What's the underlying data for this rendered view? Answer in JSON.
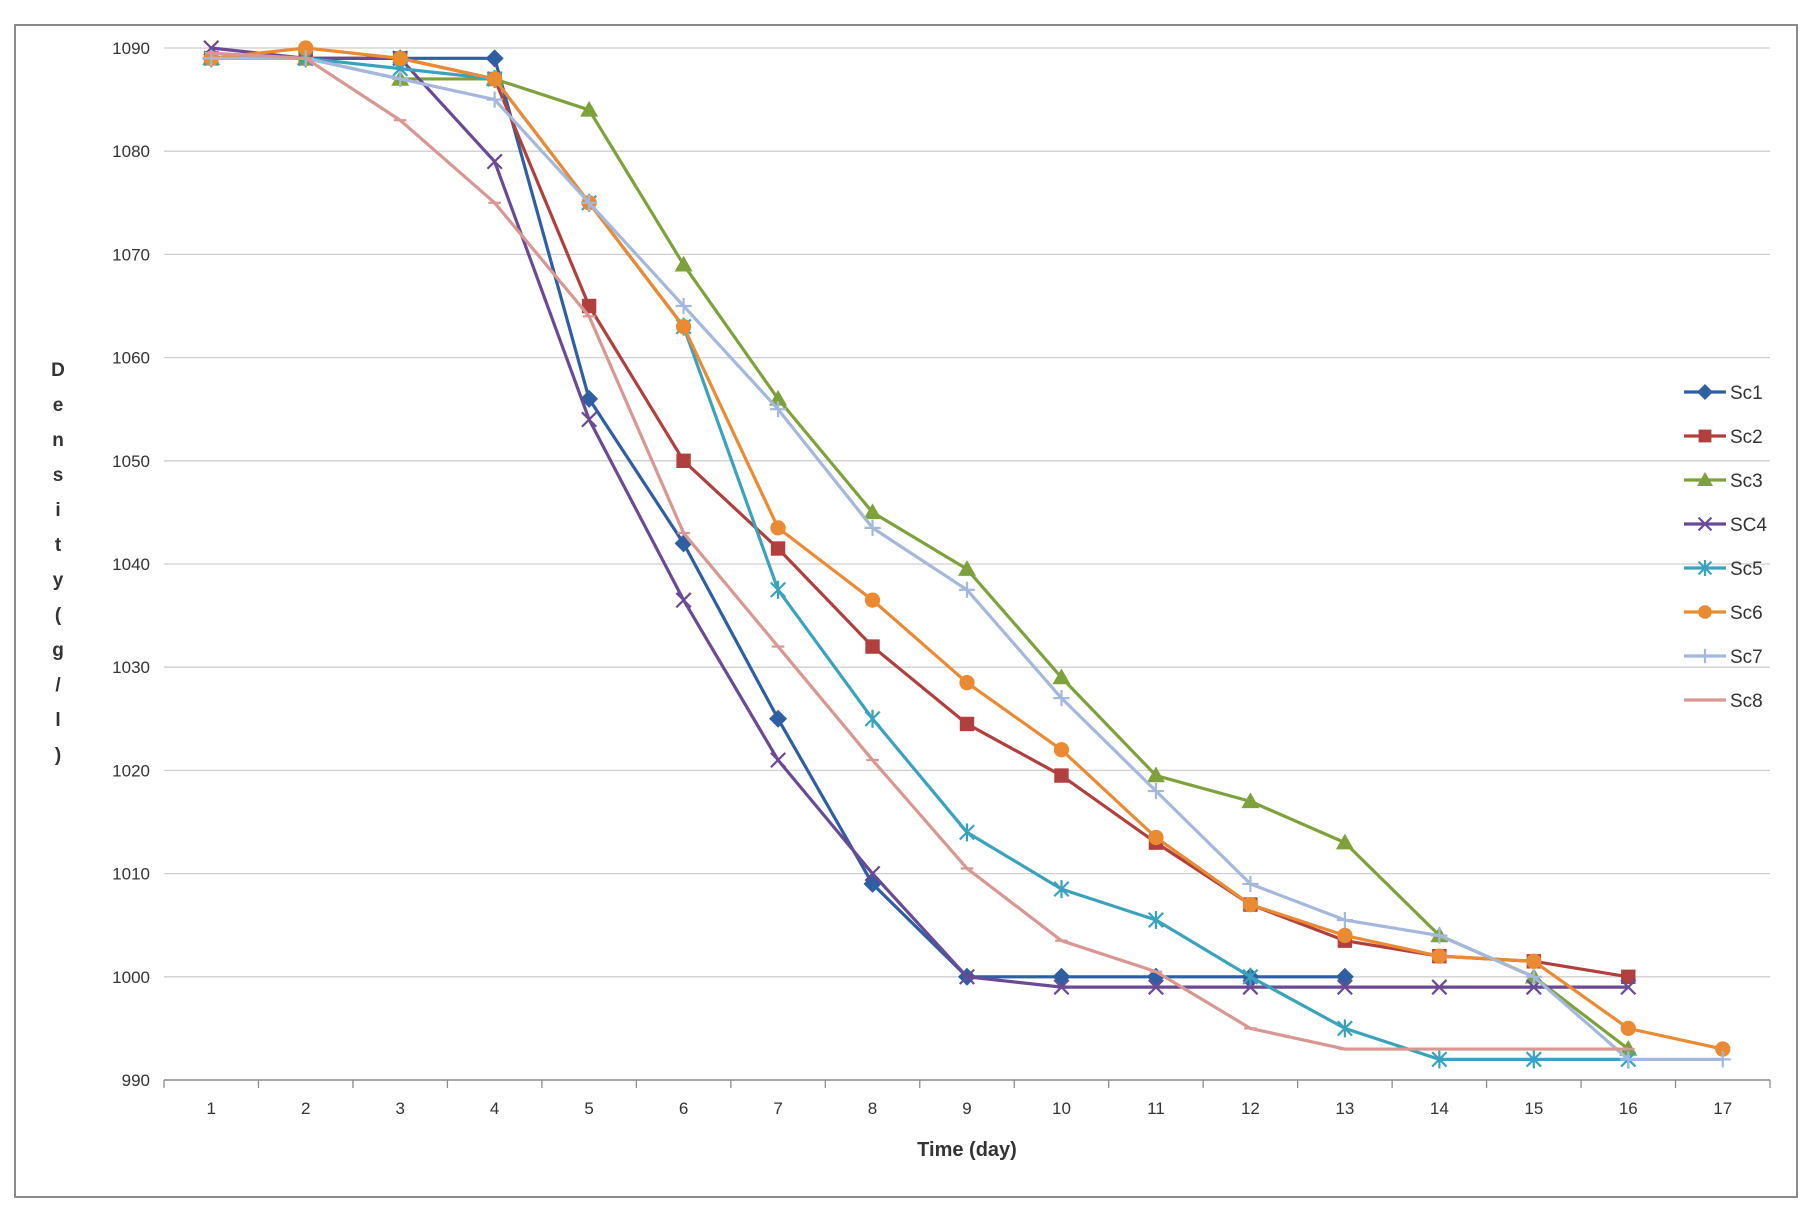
{
  "chart_data": {
    "type": "line",
    "title": "",
    "xlabel": "Time (day)",
    "ylabel": "Density (g/l)",
    "ylim": [
      990,
      1090
    ],
    "yticks": [
      990,
      1000,
      1010,
      1020,
      1030,
      1040,
      1050,
      1060,
      1070,
      1080,
      1090
    ],
    "categories": [
      "1",
      "2",
      "3",
      "4",
      "5",
      "6",
      "7",
      "8",
      "9",
      "10",
      "11",
      "12",
      "13",
      "14",
      "15",
      "16",
      "17"
    ],
    "legend_position": "right",
    "grid": true,
    "series": [
      {
        "name": "Sc1",
        "color": "#2e5fa3",
        "marker": "diamond",
        "values": [
          1089,
          1089,
          1089,
          1089,
          1056,
          1042,
          1025,
          1009,
          1000,
          1000,
          1000,
          1000,
          1000,
          null,
          null,
          null,
          null
        ]
      },
      {
        "name": "Sc2",
        "color": "#b0403d",
        "marker": "square",
        "values": [
          1089,
          1089,
          1089,
          1087,
          1065,
          1050,
          1041.5,
          1032,
          1024.5,
          1019.5,
          1013,
          1007,
          1003.5,
          1002,
          1001.5,
          1000,
          null
        ]
      },
      {
        "name": "Sc3",
        "color": "#7da23b",
        "marker": "triangle",
        "values": [
          1089,
          1089,
          1087,
          1087,
          1084,
          1069,
          1056,
          1045,
          1039.5,
          1029,
          1019.5,
          1017,
          1013,
          1004,
          1000,
          993,
          null
        ]
      },
      {
        "name": "SC4",
        "color": "#6a4a94",
        "marker": "x",
        "values": [
          1090,
          1089,
          1089,
          1079,
          1054,
          1036.5,
          1021,
          1010,
          1000,
          999,
          999,
          999,
          999,
          999,
          999,
          999,
          null
        ]
      },
      {
        "name": "Sc5",
        "color": "#3ba2bd",
        "marker": "star",
        "values": [
          1089,
          1089,
          1088,
          1087,
          1075,
          1063,
          1037.5,
          1025,
          1014,
          1008.5,
          1005.5,
          1000,
          995,
          992,
          992,
          992,
          null
        ]
      },
      {
        "name": "Sc6",
        "color": "#ea8a33",
        "marker": "circle",
        "values": [
          1089,
          1090,
          1089,
          1087,
          1075,
          1063,
          1043.5,
          1036.5,
          1028.5,
          1022,
          1013.5,
          1007,
          1004,
          1002,
          1001.5,
          995,
          993
        ]
      },
      {
        "name": "Sc7",
        "color": "#a4b8dd",
        "marker": "plus",
        "values": [
          1089,
          1089,
          1087,
          1085,
          1075,
          1065,
          1055,
          1043.5,
          1037.5,
          1027,
          1018,
          1009,
          1005.5,
          1004,
          1000,
          992,
          992
        ]
      },
      {
        "name": "Sc8",
        "color": "#d99792",
        "marker": "dash",
        "values": [
          1089.5,
          1089,
          1083,
          1075,
          1064,
          1043,
          1032,
          1021,
          1010.5,
          1003.5,
          1000.5,
          995,
          993,
          993,
          993,
          993,
          null
        ]
      }
    ]
  }
}
